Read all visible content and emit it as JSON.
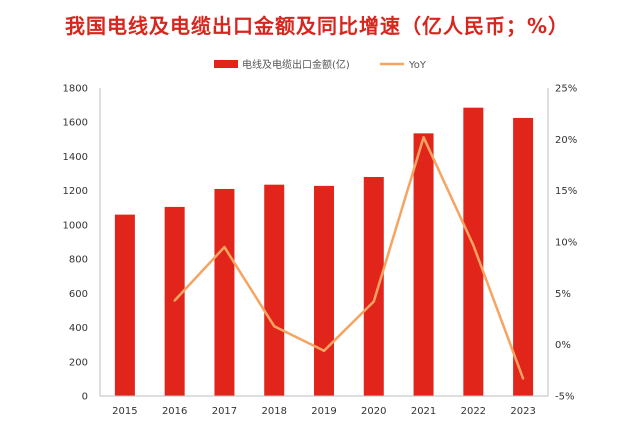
{
  "chart_data": {
    "type": "bar",
    "title": "我国电线及电缆出口金额及同比增速（亿人民币；%）",
    "categories": [
      "2015",
      "2016",
      "2017",
      "2018",
      "2019",
      "2020",
      "2021",
      "2022",
      "2023"
    ],
    "series": [
      {
        "name": "电线及电缆出口金额(亿)",
        "type": "bar",
        "axis": "left",
        "color": "#e1251b",
        "values": [
          1060,
          1105,
          1210,
          1235,
          1228,
          1280,
          1535,
          1685,
          1625
        ]
      },
      {
        "name": "YoY",
        "type": "line",
        "axis": "right",
        "color": "#f5a462",
        "values": [
          null,
          4.3,
          9.5,
          1.8,
          -0.6,
          4.2,
          20.2,
          9.7,
          -3.3
        ]
      }
    ],
    "y_left": {
      "range": [
        0,
        1800
      ],
      "ticks": [
        "0",
        "200",
        "400",
        "600",
        "800",
        "1000",
        "1200",
        "1400",
        "1600",
        "1800"
      ]
    },
    "y_right": {
      "range": [
        -5,
        25
      ],
      "ticks": [
        "-5%",
        "0%",
        "5%",
        "10%",
        "15%",
        "20%",
        "25%"
      ]
    },
    "legend_position": "top-center",
    "grid": false
  }
}
